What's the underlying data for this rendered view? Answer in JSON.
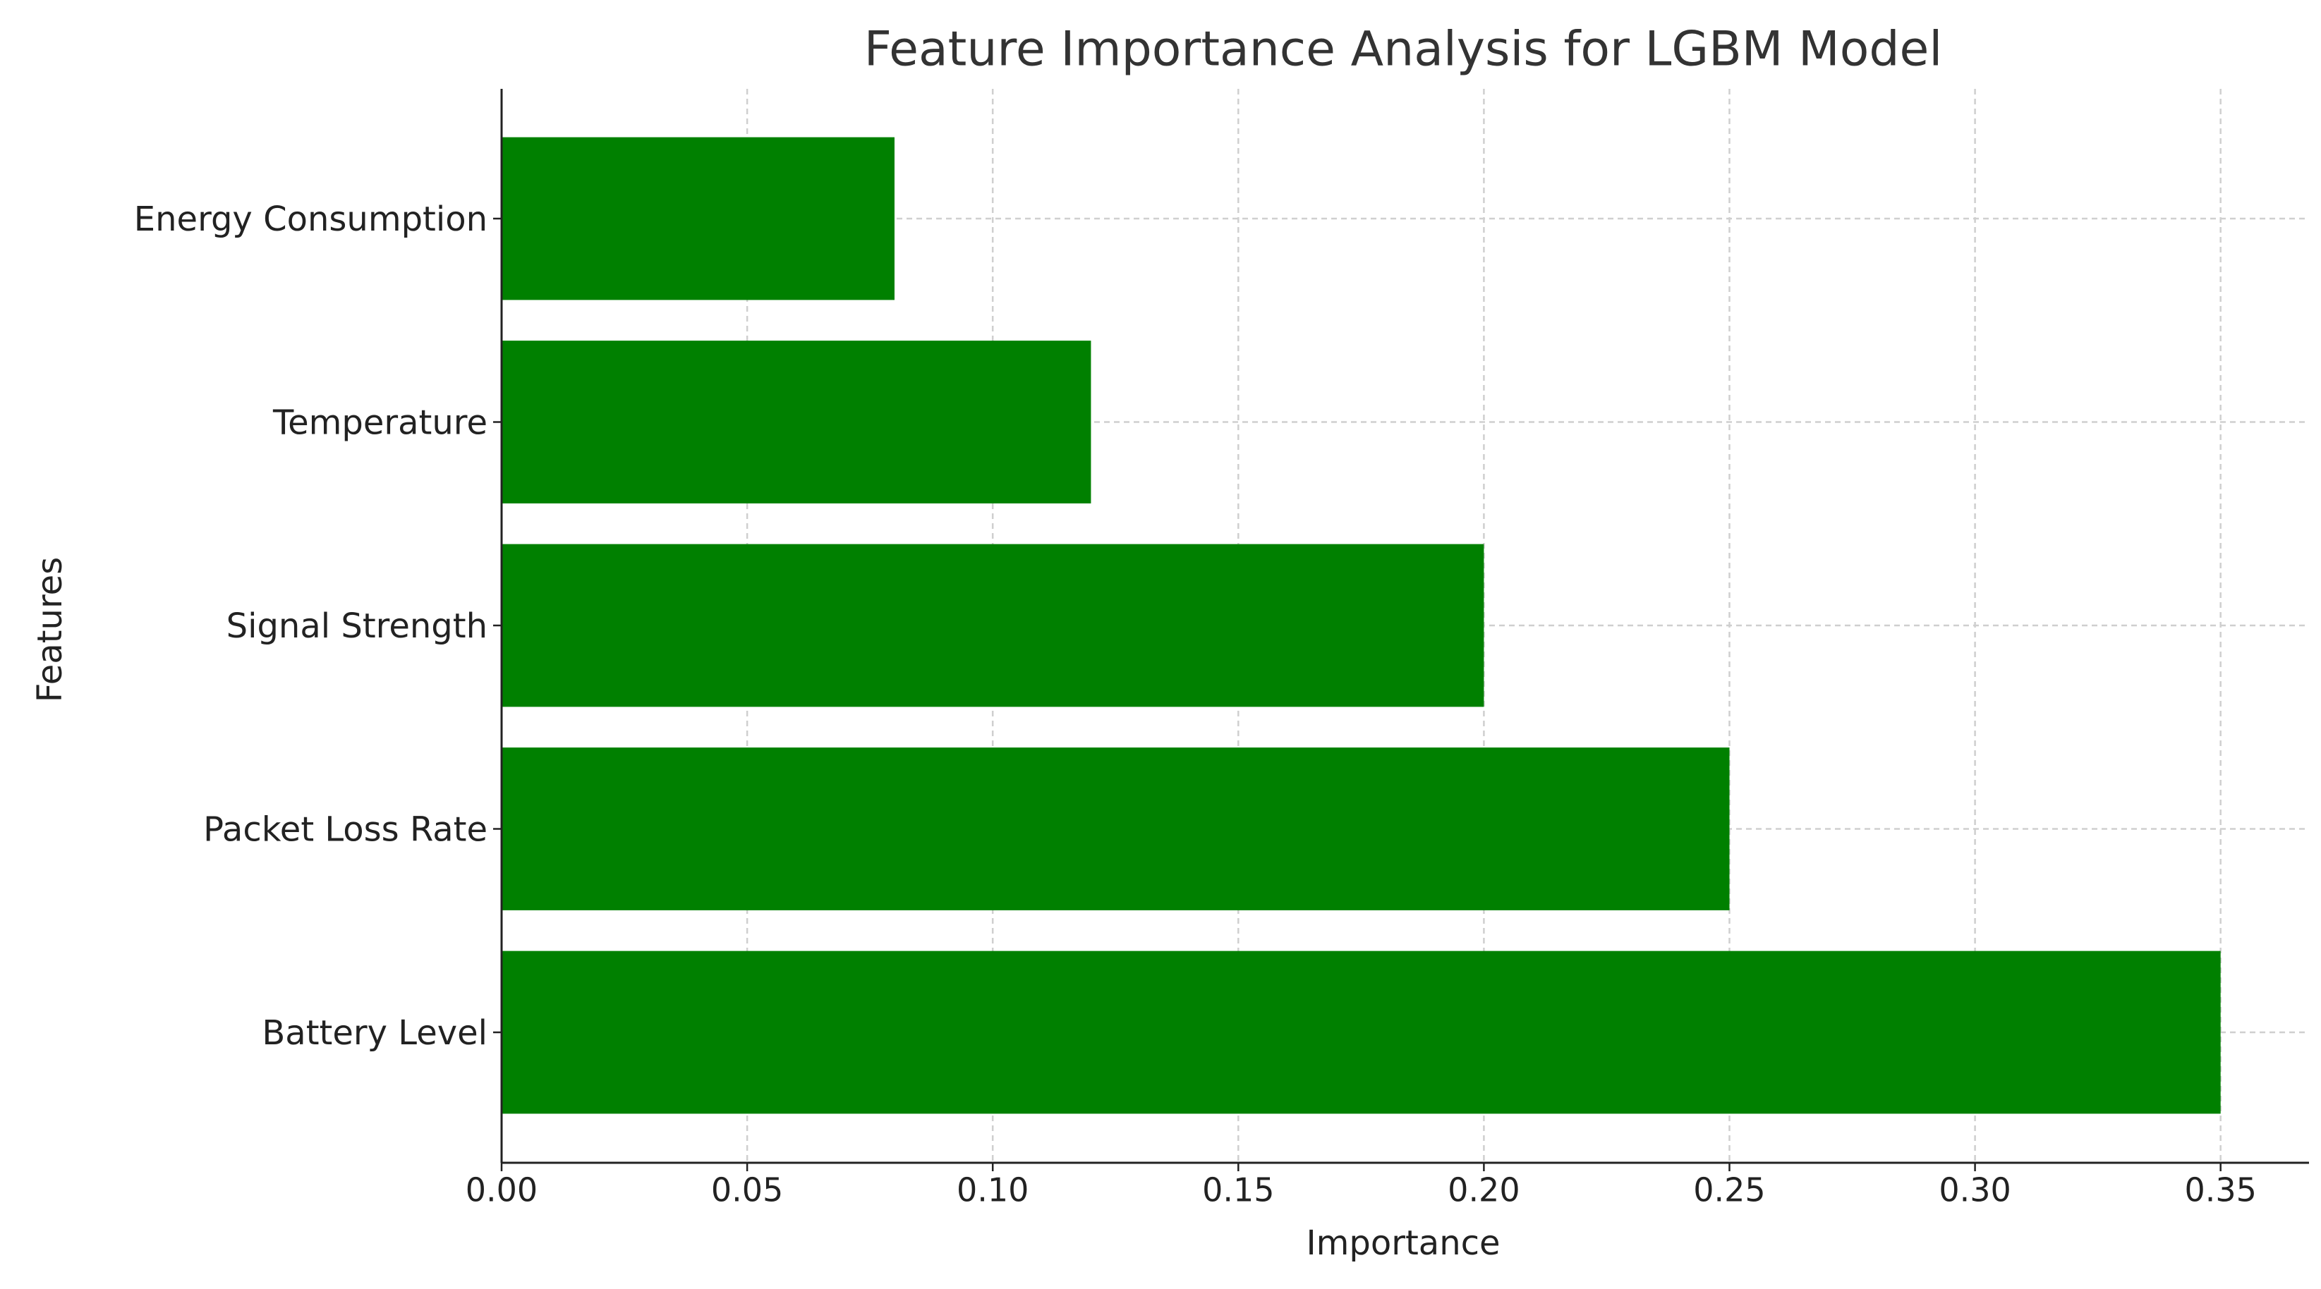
{
  "chart_data": {
    "type": "barh",
    "title": "Feature Importance Analysis for LGBM Model",
    "x_label": "Importance",
    "y_label": "Features",
    "categories": [
      "Energy Consumption",
      "Temperature",
      "Signal Strength",
      "Packet Loss Rate",
      "Battery Level"
    ],
    "values": [
      0.08,
      0.12,
      0.2,
      0.25,
      0.35
    ],
    "color": "#008000",
    "xlim": [
      0,
      0.368
    ],
    "xticks": [
      {
        "value": 0,
        "label": "0.00"
      },
      {
        "value": 0.05,
        "label": "0.05"
      },
      {
        "value": 0.1,
        "label": "0.10"
      },
      {
        "value": 0.15,
        "label": "0.15"
      },
      {
        "value": 0.2,
        "label": "0.20"
      },
      {
        "value": 0.25,
        "label": "0.25"
      },
      {
        "value": 0.3,
        "label": "0.30"
      },
      {
        "value": 0.35,
        "label": "0.35"
      }
    ],
    "grid": true
  }
}
